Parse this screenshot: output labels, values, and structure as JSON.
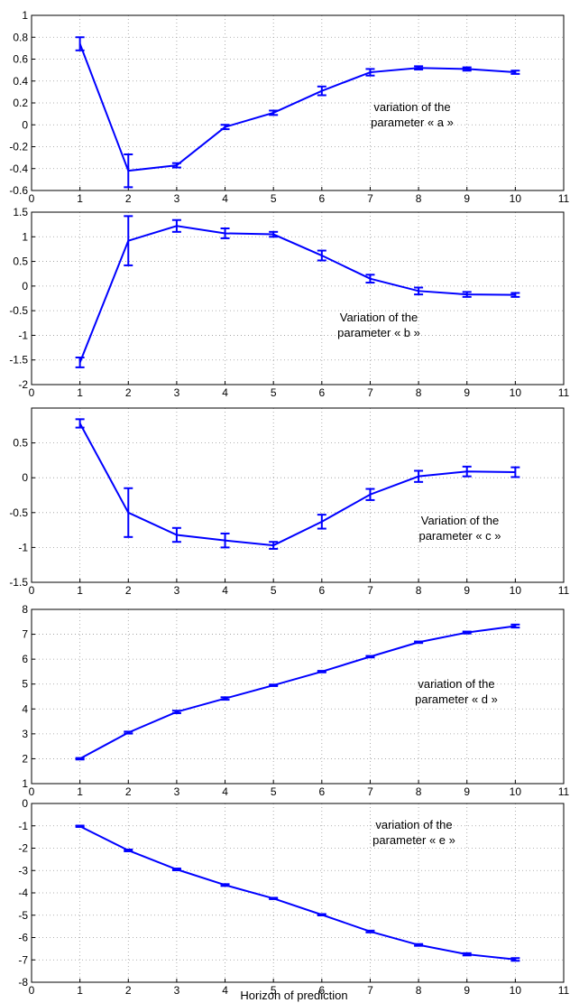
{
  "chart_data": [
    {
      "type": "line",
      "xlim": [
        0,
        11
      ],
      "ylim": [
        -0.6,
        1
      ],
      "x_ticks": [
        0,
        1,
        2,
        3,
        4,
        5,
        6,
        7,
        8,
        9,
        10,
        11
      ],
      "y_ticks": [
        -0.6,
        -0.4,
        -0.2,
        0,
        0.2,
        0.4,
        0.6,
        0.8,
        1
      ],
      "y_tick_labels": [
        "-0.6",
        "-0.4",
        "-0.2",
        "0",
        "0.2",
        "0.4",
        "0.6",
        "0.8",
        "1"
      ],
      "grid": true,
      "line_color": "#0000ff",
      "annotation": [
        "variation of the",
        "parameter « a »"
      ],
      "x": [
        1,
        2,
        3,
        4,
        5,
        6,
        7,
        8,
        9,
        10
      ],
      "y": [
        0.74,
        -0.42,
        -0.37,
        -0.02,
        0.11,
        0.31,
        0.48,
        0.52,
        0.51,
        0.48
      ],
      "err": [
        0.06,
        0.15,
        0.02,
        0.02,
        0.02,
        0.04,
        0.03,
        0.015,
        0.015,
        0.015
      ]
    },
    {
      "type": "line",
      "xlim": [
        0,
        11
      ],
      "ylim": [
        -2,
        1.5
      ],
      "x_ticks": [
        0,
        1,
        2,
        3,
        4,
        5,
        6,
        7,
        8,
        9,
        10,
        11
      ],
      "y_ticks": [
        -2,
        -1.5,
        -1,
        -0.5,
        0,
        0.5,
        1,
        1.5
      ],
      "y_tick_labels": [
        "-2",
        "-1.5",
        "-1",
        "-0.5",
        "0",
        "0.5",
        "1",
        "1.5"
      ],
      "grid": true,
      "line_color": "#0000ff",
      "annotation": [
        "Variation of the",
        "parameter « b »"
      ],
      "x": [
        1,
        2,
        3,
        4,
        5,
        6,
        7,
        8,
        9,
        10
      ],
      "y": [
        -1.55,
        0.92,
        1.22,
        1.07,
        1.05,
        0.62,
        0.15,
        -0.1,
        -0.17,
        -0.18
      ],
      "err": [
        0.1,
        0.5,
        0.12,
        0.1,
        0.05,
        0.1,
        0.08,
        0.07,
        0.05,
        0.04
      ]
    },
    {
      "type": "line",
      "xlim": [
        0,
        11
      ],
      "ylim": [
        -1.5,
        1
      ],
      "x_ticks": [
        0,
        1,
        2,
        3,
        4,
        5,
        6,
        7,
        8,
        9,
        10,
        11
      ],
      "y_ticks": [
        -1.5,
        -1,
        -0.5,
        0,
        0.5
      ],
      "y_tick_labels": [
        "-1.5",
        "-1",
        "-0.5",
        "0",
        "0.5"
      ],
      "grid": true,
      "line_color": "#0000ff",
      "annotation": [
        "Variation of the",
        "parameter « c »"
      ],
      "x": [
        1,
        2,
        3,
        4,
        5,
        6,
        7,
        8,
        9,
        10
      ],
      "y": [
        0.78,
        -0.5,
        -0.82,
        -0.9,
        -0.97,
        -0.63,
        -0.24,
        0.02,
        0.09,
        0.08
      ],
      "err": [
        0.06,
        0.35,
        0.1,
        0.1,
        0.05,
        0.1,
        0.08,
        0.08,
        0.07,
        0.07
      ]
    },
    {
      "type": "line",
      "xlim": [
        0,
        11
      ],
      "ylim": [
        1,
        8
      ],
      "x_ticks": [
        0,
        1,
        2,
        3,
        4,
        5,
        6,
        7,
        8,
        9,
        10,
        11
      ],
      "y_ticks": [
        1,
        2,
        3,
        4,
        5,
        6,
        7,
        8
      ],
      "y_tick_labels": [
        "1",
        "2",
        "3",
        "4",
        "5",
        "6",
        "7",
        "8"
      ],
      "grid": true,
      "line_color": "#0000ff",
      "annotation": [
        "variation of the",
        "parameter « d »"
      ],
      "x": [
        1,
        2,
        3,
        4,
        5,
        6,
        7,
        8,
        9,
        10
      ],
      "y": [
        2.0,
        3.05,
        3.88,
        4.42,
        4.95,
        5.5,
        6.1,
        6.68,
        7.07,
        7.33
      ],
      "err": [
        0.03,
        0.04,
        0.05,
        0.05,
        0.03,
        0.03,
        0.03,
        0.03,
        0.04,
        0.06
      ]
    },
    {
      "type": "line",
      "xlim": [
        0,
        11
      ],
      "ylim": [
        -8,
        0
      ],
      "x_ticks": [
        0,
        1,
        2,
        3,
        4,
        5,
        6,
        7,
        8,
        9,
        10,
        11
      ],
      "y_ticks": [
        -8,
        -7,
        -6,
        -5,
        -4,
        -3,
        -2,
        -1,
        0
      ],
      "y_tick_labels": [
        "-8",
        "-7",
        "-6",
        "-5",
        "-4",
        "-3",
        "-2",
        "-1",
        "0"
      ],
      "grid": true,
      "line_color": "#0000ff",
      "annotation": [
        "variation of the",
        "parameter « e »"
      ],
      "xlabel": "Horizon of prediction",
      "x": [
        1,
        2,
        3,
        4,
        5,
        6,
        7,
        8,
        9,
        10
      ],
      "y": [
        -1.02,
        -2.1,
        -2.95,
        -3.65,
        -4.25,
        -4.98,
        -5.73,
        -6.33,
        -6.75,
        -6.98
      ],
      "err": [
        0.03,
        0.04,
        0.04,
        0.04,
        0.03,
        0.03,
        0.04,
        0.04,
        0.05,
        0.06
      ]
    }
  ]
}
